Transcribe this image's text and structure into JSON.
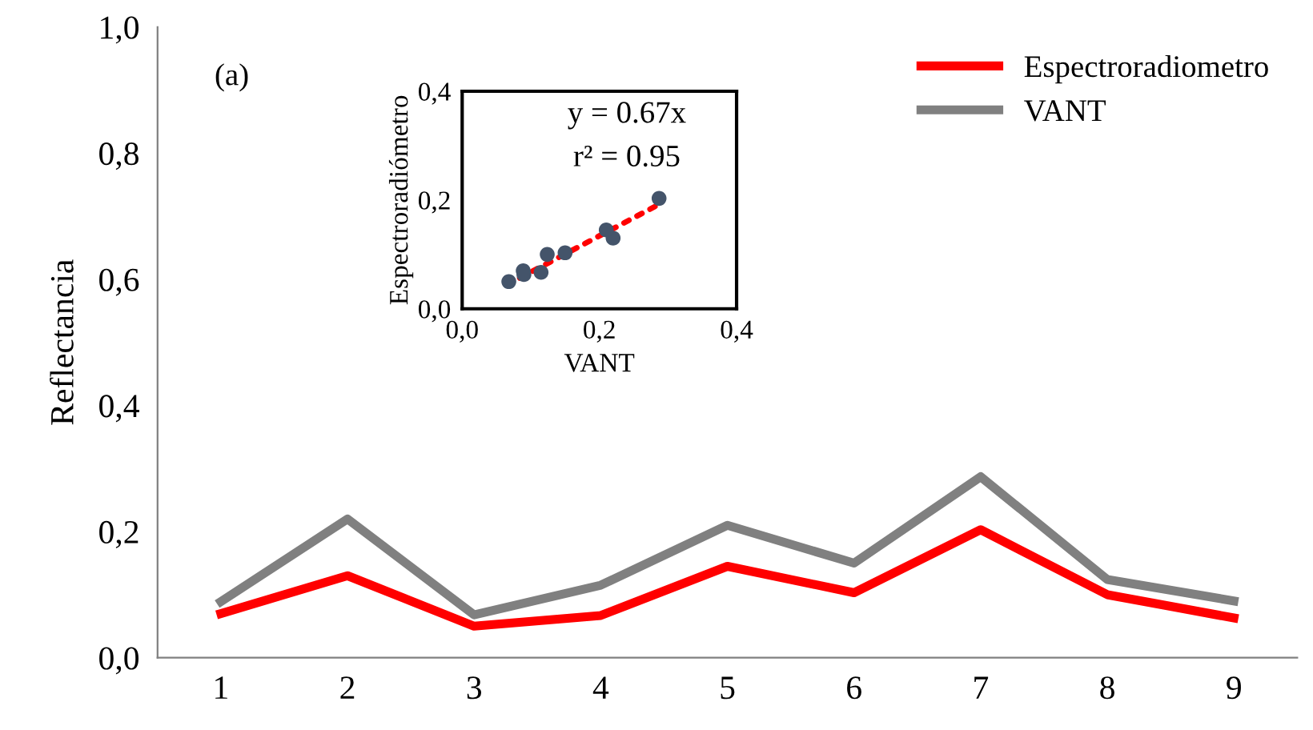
{
  "chart_data": [
    {
      "type": "line",
      "ylabel": "Reflectancia",
      "annotations": [
        "(a)"
      ],
      "categories": [
        "1",
        "2",
        "3",
        "4",
        "5",
        "6",
        "7",
        "8",
        "9"
      ],
      "series": [
        {
          "name": "Espectroradiometro",
          "color": "#ff0000",
          "values": [
            0.07,
            0.13,
            0.05,
            0.067,
            0.145,
            0.103,
            0.203,
            0.1,
            0.063
          ]
        },
        {
          "name": "VANT",
          "color": "#808080",
          "values": [
            0.089,
            0.22,
            0.068,
            0.115,
            0.21,
            0.15,
            0.287,
            0.124,
            0.09
          ]
        }
      ],
      "ylim": [
        0,
        1
      ],
      "yticks": [
        {
          "value": 0,
          "label": "0,0"
        },
        {
          "value": 0.2,
          "label": "0,2"
        },
        {
          "value": 0.4,
          "label": "0,4"
        },
        {
          "value": 0.6,
          "label": "0,6"
        },
        {
          "value": 0.8,
          "label": "0,8"
        },
        {
          "value": 1,
          "label": "1,0"
        }
      ],
      "grid": false,
      "legend": "top right",
      "marker": "none",
      "line_style": "solid"
    },
    {
      "type": "scatter",
      "xlabel": "VANT",
      "ylabel": "Espectroradiómetro",
      "annotations": [
        "y = 0.67x",
        "r² = 0.95"
      ],
      "series": [
        {
          "type": "scatter",
          "color": "#44546a",
          "x": [
            0.089,
            0.22,
            0.068,
            0.115,
            0.21,
            0.15,
            0.287,
            0.124,
            0.09
          ],
          "values": [
            0.07,
            0.13,
            0.05,
            0.067,
            0.145,
            0.103,
            0.203,
            0.1,
            0.063
          ]
        },
        {
          "type": "line",
          "color": "#ff0000",
          "line_style": "dotted",
          "x": [
            0.065,
            0.29
          ],
          "values": [
            0.044,
            0.194
          ]
        }
      ],
      "xlim": [
        0,
        0.4
      ],
      "xticks": [
        {
          "value": 0,
          "label": "0,0"
        },
        {
          "value": 0.2,
          "label": "0,2"
        },
        {
          "value": 0.4,
          "label": "0,4"
        }
      ],
      "ylim": [
        0,
        0.4
      ],
      "yticks": [
        {
          "value": 0,
          "label": "0,0"
        },
        {
          "value": 0.2,
          "label": "0,2"
        },
        {
          "value": 0.4,
          "label": "0,4"
        }
      ],
      "grid": false
    }
  ]
}
